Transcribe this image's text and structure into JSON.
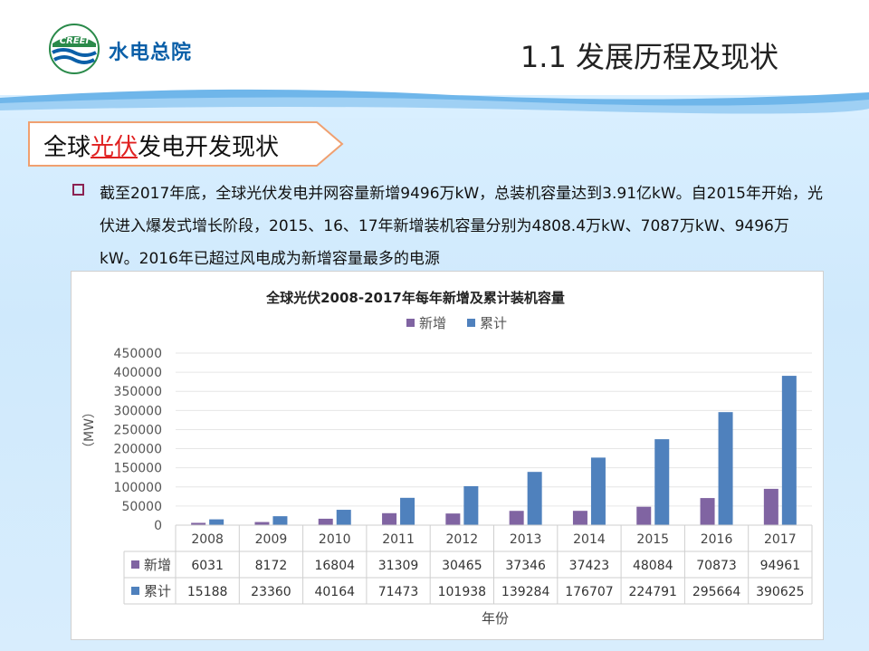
{
  "header": {
    "logo_text": "水电总院",
    "logo_badge": "CREEI",
    "slide_title": "1.1 发展历程及现状"
  },
  "section": {
    "title_prefix": "全球",
    "title_highlight": "光伏",
    "title_suffix": "发电开发现状"
  },
  "paragraph": {
    "text": "截至2017年底，全球光伏发电并网容量新增9496万kW，总装机容量达到3.91亿kW。自2015年开始，光伏进入爆发式增长阶段，2015、16、17年新增装机容量分别为4808.4万kW、7087万kW、9496万kW。2016年已超过风电成为新增容量最多的电源"
  },
  "colors": {
    "new": "#8064a2",
    "total": "#4f81bd",
    "brand_blue": "#0a5fa8",
    "highlight_red": "#e02020"
  },
  "chart_data": {
    "type": "bar",
    "title": "全球光伏2008-2017年每年新增及累计装机容量",
    "xlabel": "年份",
    "ylabel": "（MW）",
    "ylim": [
      0,
      450000
    ],
    "yticks": [
      0,
      50000,
      100000,
      150000,
      200000,
      250000,
      300000,
      350000,
      400000,
      450000
    ],
    "categories": [
      "2008",
      "2009",
      "2010",
      "2011",
      "2012",
      "2013",
      "2014",
      "2015",
      "2016",
      "2017"
    ],
    "series": [
      {
        "name": "新增",
        "values": [
          6031,
          8172,
          16804,
          31309,
          30465,
          37346,
          37423,
          48084,
          70873,
          94961
        ]
      },
      {
        "name": "累计",
        "values": [
          15188,
          23360,
          40164,
          71473,
          101938,
          139284,
          176707,
          224791,
          295664,
          390625
        ]
      }
    ],
    "legend": "top",
    "data_table": true
  }
}
